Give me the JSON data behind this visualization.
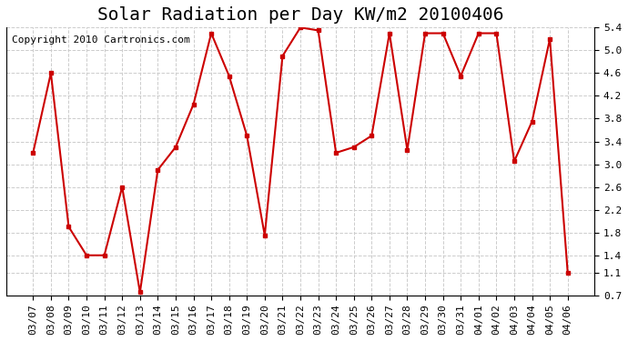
{
  "title": "Solar Radiation per Day KW/m2 20100406",
  "copyright": "Copyright 2010 Cartronics.com",
  "dates": [
    "03/07",
    "03/08",
    "03/09",
    "03/10",
    "03/11",
    "03/12",
    "03/13",
    "03/14",
    "03/15",
    "03/16",
    "03/17",
    "03/18",
    "03/19",
    "03/20",
    "03/21",
    "03/22",
    "03/23",
    "03/24",
    "03/25",
    "03/26",
    "03/27",
    "03/28",
    "03/29",
    "03/30",
    "03/31",
    "04/01",
    "04/02",
    "04/03",
    "04/04",
    "04/05",
    "04/06"
  ],
  "values": [
    3.2,
    4.6,
    1.9,
    1.4,
    1.4,
    2.6,
    0.75,
    2.9,
    3.3,
    4.05,
    5.3,
    4.55,
    3.5,
    1.75,
    4.9,
    5.4,
    5.35,
    3.2,
    3.3,
    3.5,
    5.3,
    3.25,
    5.3,
    5.3,
    4.55,
    5.3,
    5.3,
    3.05,
    3.75,
    5.2,
    1.1
  ],
  "line_color": "#cc0000",
  "marker_color": "#cc0000",
  "bg_color": "#ffffff",
  "grid_color": "#cccccc",
  "ylim": [
    0.7,
    5.4
  ],
  "yticks": [
    0.7,
    1.1,
    1.4,
    1.8,
    2.2,
    2.6,
    3.0,
    3.4,
    3.8,
    4.2,
    4.6,
    5.0,
    5.4
  ],
  "title_fontsize": 14,
  "copyright_fontsize": 8,
  "tick_fontsize": 8
}
